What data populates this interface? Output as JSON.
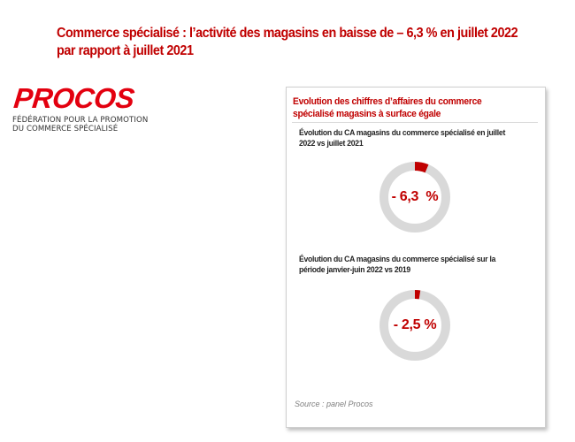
{
  "title": {
    "line1": "Commerce spécialisé : l’activité des magasins en baisse de – 6,3 % en juillet 2022",
    "line2": "par rapport à juillet 2021"
  },
  "logo": {
    "brand": "PROCOS",
    "tagline_line1": "FÉDÉRATION POUR LA PROMOTION",
    "tagline_line2": "DU COMMERCE SPÉCIALISÉ"
  },
  "panel": {
    "title_line1": "Evolution des chiffres d’affaires du  commerce",
    "title_line2": "spécialisé magasins à surface égale",
    "source": "Source : panel Procos"
  },
  "colors": {
    "accent": "#c00000",
    "ring": "#d9d9d9",
    "slice": "#c00000"
  },
  "chart_data": [
    {
      "type": "pie",
      "title_line1": "Évolution du CA magasins du commerce spécialisé en juillet",
      "title_line2": "2022 vs juillet 2021",
      "label": "- 6,3  %",
      "values": [
        -6.3
      ],
      "unit": "%"
    },
    {
      "type": "pie",
      "title_line1": "Évolution du CA magasins du commerce spécialisé sur la",
      "title_line2": "période janvier-juin 2022 vs 2019",
      "label": "- 2,5 %",
      "values": [
        -2.5
      ],
      "unit": "%"
    }
  ]
}
